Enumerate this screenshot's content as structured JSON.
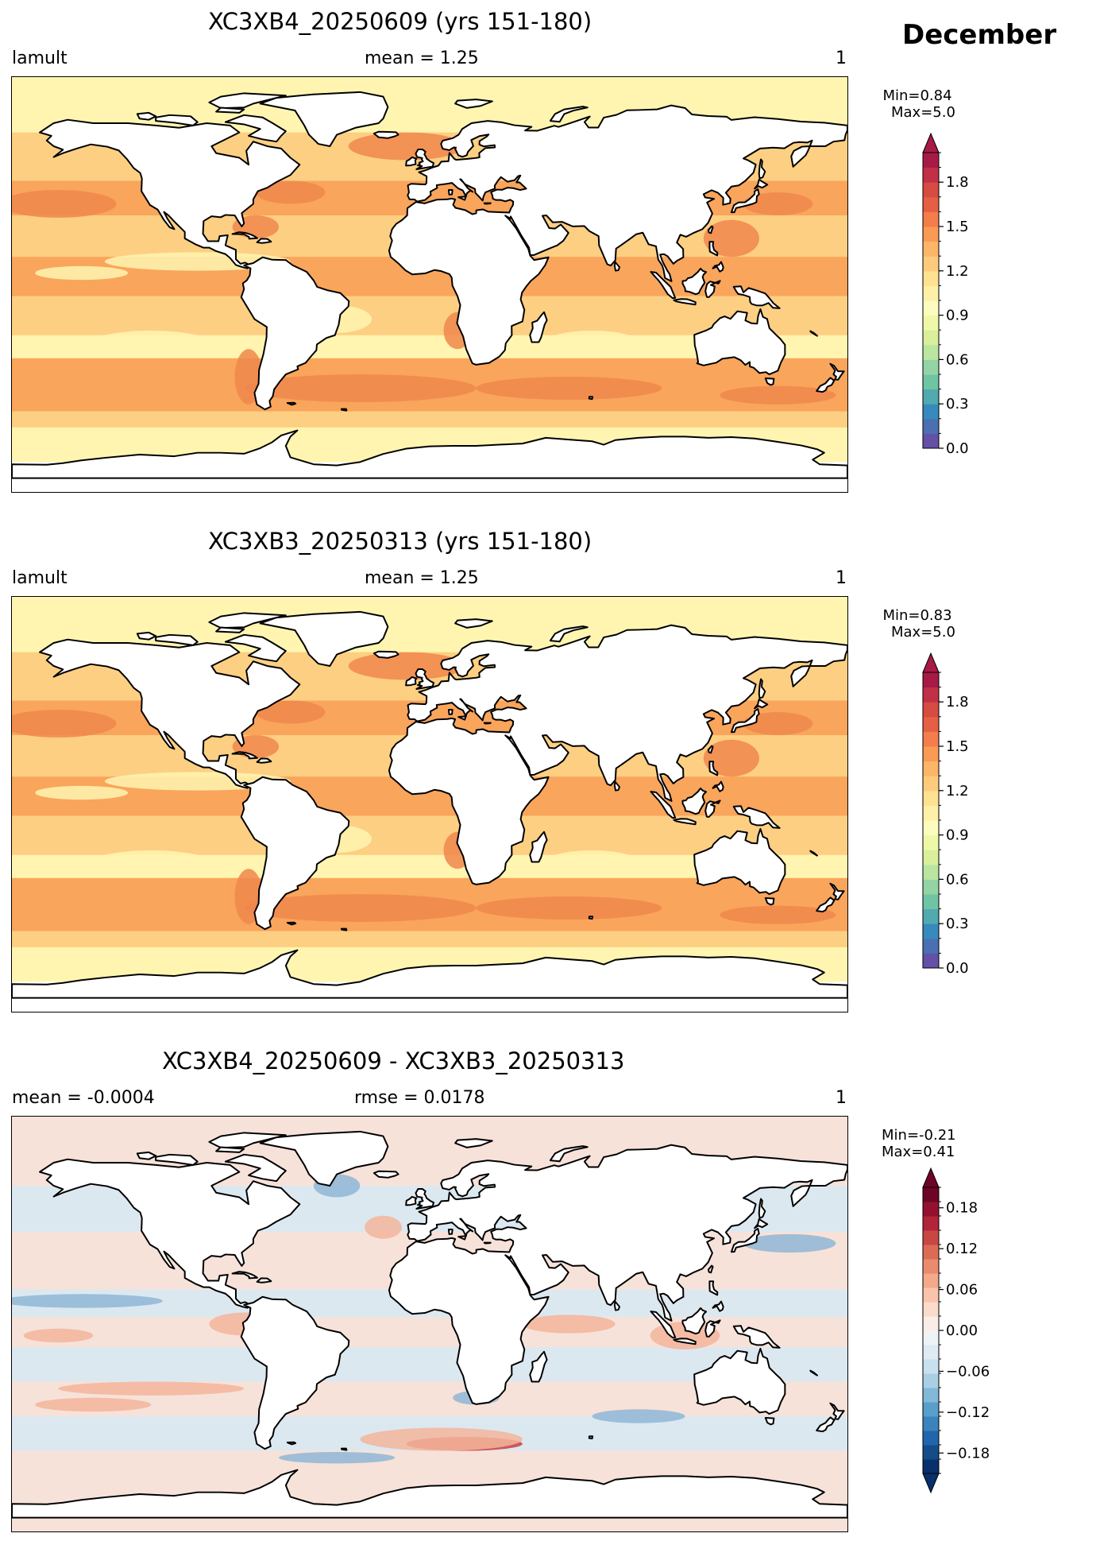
{
  "month_title": "December",
  "panels": [
    {
      "title": "XC3XB4_20250609 (yrs 151-180)",
      "left_label": "lamult",
      "center_label": "mean = 1.25",
      "right_label": "1",
      "colorbar": {
        "min_text": "Min=0.84",
        "max_text": "Max=5.0",
        "colors": [
          "#6450a6",
          "#4a70b2",
          "#368abe",
          "#52a9b0",
          "#6fc4a4",
          "#94d4a4",
          "#bae6a0",
          "#d9ef9b",
          "#eef8a9",
          "#fbfcbe",
          "#fff0a8",
          "#fee191",
          "#fdcb7b",
          "#fdb567",
          "#f99a55",
          "#f47d4b",
          "#e55f44",
          "#d64b42",
          "#c13046",
          "#a71a45"
        ],
        "range": [
          0,
          2.0
        ],
        "extend": "max",
        "ticks": [
          {
            "value": 0.0,
            "label": "0.0"
          },
          {
            "value": 0.3,
            "label": "0.3"
          },
          {
            "value": 0.6,
            "label": "0.6"
          },
          {
            "value": 0.9,
            "label": "0.9"
          },
          {
            "value": 1.2,
            "label": "1.2"
          },
          {
            "value": 1.5,
            "label": "1.5"
          },
          {
            "value": 1.8,
            "label": "1.8"
          }
        ]
      }
    },
    {
      "title": "XC3XB3_20250313 (yrs 151-180)",
      "left_label": "lamult",
      "center_label": "mean = 1.25",
      "right_label": "1",
      "colorbar": {
        "min_text": "Min=0.83",
        "max_text": "Max=5.0",
        "colors": [
          "#6450a6",
          "#4a70b2",
          "#368abe",
          "#52a9b0",
          "#6fc4a4",
          "#94d4a4",
          "#bae6a0",
          "#d9ef9b",
          "#eef8a9",
          "#fbfcbe",
          "#fff0a8",
          "#fee191",
          "#fdcb7b",
          "#fdb567",
          "#f99a55",
          "#f47d4b",
          "#e55f44",
          "#d64b42",
          "#c13046",
          "#a71a45"
        ],
        "range": [
          0,
          2.0
        ],
        "extend": "max",
        "ticks": [
          {
            "value": 0.0,
            "label": "0.0"
          },
          {
            "value": 0.3,
            "label": "0.3"
          },
          {
            "value": 0.6,
            "label": "0.6"
          },
          {
            "value": 0.9,
            "label": "0.9"
          },
          {
            "value": 1.2,
            "label": "1.2"
          },
          {
            "value": 1.5,
            "label": "1.5"
          },
          {
            "value": 1.8,
            "label": "1.8"
          }
        ]
      }
    },
    {
      "title": "XC3XB4_20250609 - XC3XB3_20250313",
      "left_label": "mean = -0.0004",
      "center_label": "rmse = 0.0178",
      "right_label": "1",
      "colorbar": {
        "min_text": "Min=-0.21",
        "max_text": "Max=0.41",
        "colors": [
          "#08306b",
          "#144c8a",
          "#2166ac",
          "#3a84bb",
          "#5a9ecb",
          "#82b9d9",
          "#a9cfe5",
          "#c9e0ee",
          "#deebf2",
          "#eef3f6",
          "#faede6",
          "#fbdbcb",
          "#f9c4ab",
          "#f4a98b",
          "#ea8b6e",
          "#db6b55",
          "#c84742",
          "#b2243a",
          "#93112f",
          "#6d0526"
        ],
        "range": [
          -0.21,
          0.21
        ],
        "extend": "both",
        "ticks": [
          {
            "value": -0.18,
            "label": "−0.18"
          },
          {
            "value": -0.12,
            "label": "−0.12"
          },
          {
            "value": -0.06,
            "label": "−0.06"
          },
          {
            "value": 0.0,
            "label": "0.00"
          },
          {
            "value": 0.06,
            "label": "0.06"
          },
          {
            "value": 0.12,
            "label": "0.12"
          },
          {
            "value": 0.18,
            "label": "0.18"
          }
        ]
      }
    }
  ],
  "map_colors": {
    "field_panel": {
      "base": "#fdcf82",
      "light": "#fff5b0",
      "deep": "#f9a55c",
      "hot": "#f0874c"
    },
    "diff_panel": {
      "base": "#f7e2d9",
      "blue": "#dce8f0",
      "red": "#f3b59b",
      "deep_red": "#c9403d",
      "deep_blue": "#8fb6d6"
    },
    "land": "#ffffff",
    "coast": "#000000"
  }
}
